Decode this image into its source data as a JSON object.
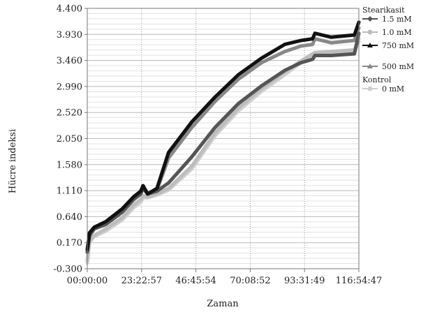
{
  "chart_data": {
    "type": "line",
    "xlabel": "Zaman",
    "ylabel": "Hücre indeksi",
    "x_tick_labels": [
      "00:00:00",
      "23:22:57",
      "46:45:54",
      "70:08:52",
      "93:31:49",
      "116:54:47"
    ],
    "x_ticks_hours": [
      0,
      23.383,
      46.765,
      70.148,
      93.53,
      116.913
    ],
    "xlim_hours": [
      0,
      116.913
    ],
    "y_tick_labels": [
      "-0.300",
      "0.170",
      "0.640",
      "1.110",
      "1.580",
      "2.050",
      "2.520",
      "2.990",
      "3.460",
      "3.930",
      "4.400"
    ],
    "ylim": [
      -0.3,
      4.4
    ],
    "grid": true,
    "legend_position": "right",
    "legend": [
      {
        "group": "Stearikasit"
      },
      {
        "name": "1.5 mM",
        "color": "#555555",
        "marker": "diamond"
      },
      {
        "name": "1.0 mM",
        "color": "#bdbdbd",
        "marker": "circle"
      },
      {
        "name": "750 mM",
        "color": "#111111",
        "marker": "triangle"
      },
      {
        "name": "500 mM",
        "color": "#888888",
        "marker": "triangle"
      },
      {
        "group": "Kontrol"
      },
      {
        "name": "0 mM",
        "color": "#d0d0d0",
        "marker": "circle"
      }
    ],
    "series": [
      {
        "name": "1.5 mM",
        "color": "#555555",
        "x": [
          0,
          1,
          3,
          8,
          15,
          20,
          23,
          24,
          26,
          30,
          35,
          45,
          55,
          65,
          75,
          85,
          92,
          97,
          98,
          105,
          115,
          116.9
        ],
        "y": [
          0.0,
          0.3,
          0.42,
          0.5,
          0.72,
          0.95,
          1.05,
          1.15,
          1.05,
          1.1,
          1.25,
          1.72,
          2.25,
          2.68,
          3.0,
          3.28,
          3.42,
          3.48,
          3.55,
          3.55,
          3.58,
          3.95
        ]
      },
      {
        "name": "1.0 mM",
        "color": "#bdbdbd",
        "x": [
          0,
          1,
          3,
          8,
          15,
          20,
          23,
          24,
          26,
          30,
          35,
          45,
          55,
          65,
          75,
          85,
          92,
          97,
          98,
          105,
          115,
          116.9
        ],
        "y": [
          -0.15,
          0.2,
          0.3,
          0.42,
          0.62,
          0.85,
          0.95,
          1.02,
          1.0,
          1.05,
          1.15,
          1.55,
          2.15,
          2.6,
          2.95,
          3.25,
          3.45,
          3.58,
          3.6,
          3.62,
          3.65,
          3.85
        ]
      },
      {
        "name": "750 mM",
        "color": "#111111",
        "x": [
          0,
          1,
          3,
          8,
          15,
          20,
          23,
          24,
          26,
          30,
          35,
          45,
          55,
          65,
          75,
          85,
          92,
          97,
          98,
          105,
          115,
          116.9
        ],
        "y": [
          0.05,
          0.35,
          0.45,
          0.55,
          0.78,
          1.0,
          1.1,
          1.2,
          1.05,
          1.15,
          1.8,
          2.35,
          2.8,
          3.2,
          3.5,
          3.75,
          3.82,
          3.85,
          3.95,
          3.88,
          3.92,
          4.15
        ]
      },
      {
        "name": "500 mM",
        "color": "#888888",
        "x": [
          0,
          1,
          3,
          8,
          15,
          20,
          23,
          24,
          26,
          30,
          35,
          45,
          55,
          65,
          75,
          85,
          92,
          97,
          98,
          105,
          115,
          116.9
        ],
        "y": [
          0.0,
          0.32,
          0.43,
          0.52,
          0.75,
          0.98,
          1.08,
          1.17,
          1.05,
          1.12,
          1.7,
          2.25,
          2.72,
          3.12,
          3.42,
          3.62,
          3.72,
          3.75,
          3.85,
          3.78,
          3.82,
          4.05
        ]
      },
      {
        "name": "0 mM",
        "color": "#d0d0d0",
        "x": [
          0,
          1,
          3,
          8,
          15,
          20,
          23,
          24,
          26,
          30,
          35,
          45,
          55,
          65,
          75,
          85,
          92,
          97,
          98,
          105,
          115,
          116.9
        ],
        "y": [
          -0.2,
          0.18,
          0.28,
          0.38,
          0.58,
          0.8,
          0.9,
          0.98,
          0.98,
          1.03,
          1.12,
          1.5,
          2.1,
          2.55,
          2.9,
          3.2,
          3.42,
          3.55,
          3.58,
          3.6,
          3.62,
          3.8
        ]
      }
    ]
  }
}
